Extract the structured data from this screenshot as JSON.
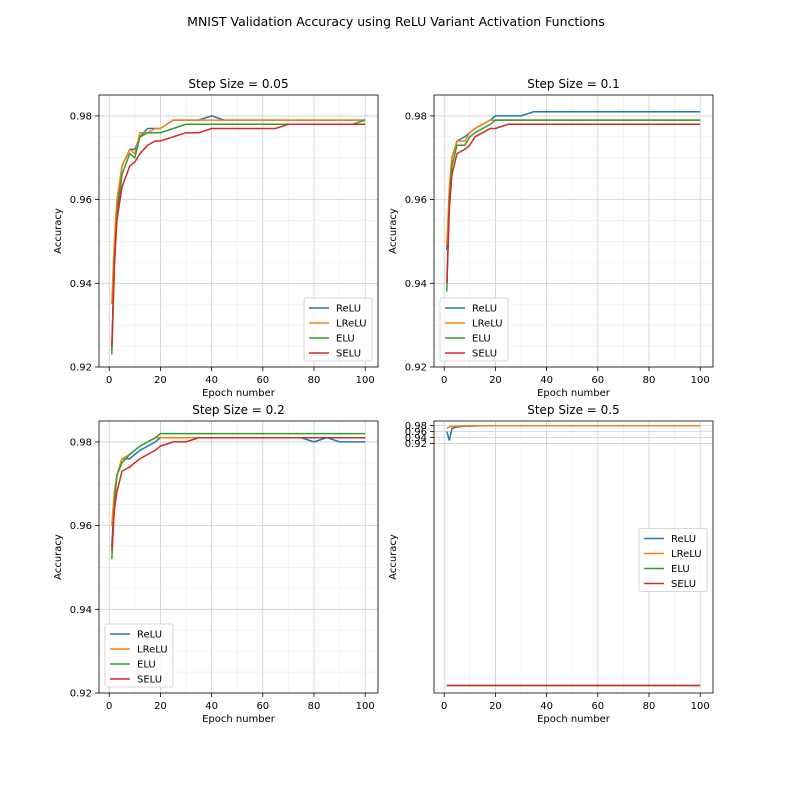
{
  "suptitle": "MNIST Validation Accuracy using ReLU Variant Activation Functions",
  "colors": {
    "ReLU": "#1f77b4",
    "LReLU": "#ff7f0e",
    "ELU": "#2ca02c",
    "SELU": "#d62728"
  },
  "chart_data": [
    {
      "type": "line",
      "title": "Step Size = 0.05",
      "xlabel": "Epoch number",
      "ylabel": "Accuracy",
      "xlim": [
        -4,
        105
      ],
      "ylim": [
        0.92,
        0.985
      ],
      "xticks": [
        0,
        20,
        40,
        60,
        80,
        100
      ],
      "yticks": [
        0.92,
        0.94,
        0.96,
        0.98
      ],
      "ytick_labels": [
        "0.92",
        "0.94",
        "0.96",
        "0.98"
      ],
      "grid": true,
      "legend": "lower-right",
      "x": [
        1,
        2,
        3,
        5,
        8,
        10,
        12,
        15,
        18,
        20,
        25,
        30,
        35,
        40,
        45,
        50,
        55,
        60,
        65,
        70,
        75,
        80,
        85,
        90,
        95,
        100
      ],
      "series": [
        {
          "name": "ReLU",
          "values": [
            0.924,
            0.946,
            0.958,
            0.968,
            0.972,
            0.972,
            0.975,
            0.977,
            0.977,
            0.977,
            0.979,
            0.979,
            0.979,
            0.98,
            0.979,
            0.979,
            0.979,
            0.979,
            0.979,
            0.979,
            0.979,
            0.979,
            0.979,
            0.979,
            0.979,
            0.979
          ]
        },
        {
          "name": "LReLU",
          "values": [
            0.935,
            0.95,
            0.96,
            0.968,
            0.972,
            0.971,
            0.976,
            0.976,
            0.977,
            0.977,
            0.979,
            0.979,
            0.979,
            0.979,
            0.979,
            0.979,
            0.979,
            0.979,
            0.979,
            0.979,
            0.979,
            0.979,
            0.979,
            0.979,
            0.979,
            0.979
          ]
        },
        {
          "name": "ELU",
          "values": [
            0.923,
            0.945,
            0.956,
            0.966,
            0.971,
            0.97,
            0.975,
            0.976,
            0.976,
            0.976,
            0.977,
            0.978,
            0.978,
            0.978,
            0.978,
            0.978,
            0.978,
            0.978,
            0.978,
            0.978,
            0.978,
            0.978,
            0.978,
            0.978,
            0.978,
            0.979
          ]
        },
        {
          "name": "SELU",
          "values": [
            0.925,
            0.944,
            0.955,
            0.963,
            0.968,
            0.969,
            0.971,
            0.973,
            0.974,
            0.974,
            0.975,
            0.976,
            0.976,
            0.977,
            0.977,
            0.977,
            0.977,
            0.977,
            0.977,
            0.978,
            0.978,
            0.978,
            0.978,
            0.978,
            0.978,
            0.978
          ]
        }
      ]
    },
    {
      "type": "line",
      "title": "Step Size = 0.1",
      "xlabel": "Epoch number",
      "ylabel": "Accuracy",
      "xlim": [
        -4,
        105
      ],
      "ylim": [
        0.92,
        0.985
      ],
      "xticks": [
        0,
        20,
        40,
        60,
        80,
        100
      ],
      "yticks": [
        0.92,
        0.94,
        0.96,
        0.98
      ],
      "ytick_labels": [
        "0.92",
        "0.94",
        "0.96",
        "0.98"
      ],
      "grid": true,
      "legend": "lower-left",
      "x": [
        1,
        2,
        3,
        5,
        8,
        10,
        12,
        15,
        18,
        20,
        25,
        30,
        35,
        40,
        45,
        50,
        55,
        60,
        65,
        70,
        75,
        80,
        85,
        90,
        95,
        100
      ],
      "series": [
        {
          "name": "ReLU",
          "values": [
            0.948,
            0.962,
            0.97,
            0.974,
            0.975,
            0.976,
            0.977,
            0.978,
            0.979,
            0.98,
            0.98,
            0.98,
            0.981,
            0.981,
            0.981,
            0.981,
            0.981,
            0.981,
            0.981,
            0.981,
            0.981,
            0.981,
            0.981,
            0.981,
            0.981,
            0.981
          ]
        },
        {
          "name": "LReLU",
          "values": [
            0.949,
            0.963,
            0.97,
            0.974,
            0.974,
            0.976,
            0.977,
            0.978,
            0.979,
            0.979,
            0.979,
            0.979,
            0.979,
            0.979,
            0.979,
            0.979,
            0.979,
            0.979,
            0.979,
            0.979,
            0.979,
            0.979,
            0.979,
            0.979,
            0.979,
            0.979
          ]
        },
        {
          "name": "ELU",
          "values": [
            0.938,
            0.96,
            0.968,
            0.973,
            0.973,
            0.975,
            0.976,
            0.977,
            0.978,
            0.979,
            0.979,
            0.979,
            0.979,
            0.979,
            0.979,
            0.979,
            0.979,
            0.979,
            0.979,
            0.979,
            0.979,
            0.979,
            0.979,
            0.979,
            0.979,
            0.979
          ]
        },
        {
          "name": "SELU",
          "values": [
            0.94,
            0.958,
            0.966,
            0.971,
            0.972,
            0.973,
            0.975,
            0.976,
            0.977,
            0.977,
            0.978,
            0.978,
            0.978,
            0.978,
            0.978,
            0.978,
            0.978,
            0.978,
            0.978,
            0.978,
            0.978,
            0.978,
            0.978,
            0.978,
            0.978,
            0.978
          ]
        }
      ]
    },
    {
      "type": "line",
      "title": "Step Size = 0.2",
      "xlabel": "Epoch number",
      "ylabel": "Accuracy",
      "xlim": [
        -4,
        105
      ],
      "ylim": [
        0.92,
        0.985
      ],
      "xticks": [
        0,
        20,
        40,
        60,
        80,
        100
      ],
      "yticks": [
        0.92,
        0.94,
        0.96,
        0.98
      ],
      "ytick_labels": [
        "0.92",
        "0.94",
        "0.96",
        "0.98"
      ],
      "grid": true,
      "legend": "lower-left",
      "x": [
        1,
        2,
        3,
        5,
        8,
        10,
        12,
        15,
        18,
        20,
        25,
        30,
        35,
        40,
        45,
        50,
        55,
        60,
        65,
        70,
        75,
        80,
        85,
        90,
        95,
        100
      ],
      "series": [
        {
          "name": "ReLU",
          "values": [
            0.955,
            0.967,
            0.972,
            0.976,
            0.976,
            0.977,
            0.978,
            0.979,
            0.98,
            0.981,
            0.981,
            0.981,
            0.981,
            0.981,
            0.981,
            0.981,
            0.981,
            0.981,
            0.981,
            0.981,
            0.981,
            0.98,
            0.981,
            0.98,
            0.98,
            0.98
          ]
        },
        {
          "name": "LReLU",
          "values": [
            0.96,
            0.968,
            0.972,
            0.976,
            0.977,
            0.978,
            0.979,
            0.98,
            0.981,
            0.981,
            0.981,
            0.981,
            0.981,
            0.981,
            0.981,
            0.981,
            0.981,
            0.981,
            0.981,
            0.981,
            0.981,
            0.981,
            0.981,
            0.981,
            0.981,
            0.981
          ]
        },
        {
          "name": "ELU",
          "values": [
            0.952,
            0.965,
            0.972,
            0.975,
            0.977,
            0.978,
            0.979,
            0.98,
            0.981,
            0.982,
            0.982,
            0.982,
            0.982,
            0.982,
            0.982,
            0.982,
            0.982,
            0.982,
            0.982,
            0.982,
            0.982,
            0.982,
            0.982,
            0.982,
            0.982,
            0.982
          ]
        },
        {
          "name": "SELU",
          "values": [
            0.954,
            0.964,
            0.968,
            0.973,
            0.974,
            0.975,
            0.976,
            0.977,
            0.978,
            0.979,
            0.98,
            0.98,
            0.981,
            0.981,
            0.981,
            0.981,
            0.981,
            0.981,
            0.981,
            0.981,
            0.981,
            0.981,
            0.981,
            0.981,
            0.981,
            0.981
          ]
        }
      ]
    },
    {
      "type": "line",
      "title": "Step Size = 0.5",
      "xlabel": "Epoch number",
      "ylabel": "Accuracy",
      "xlim": [
        -4,
        105
      ],
      "ylim": [
        0.09,
        0.995
      ],
      "xticks": [
        0,
        20,
        40,
        60,
        80,
        100
      ],
      "yticks": [
        0.92,
        0.94,
        0.96,
        0.98
      ],
      "ytick_labels": [
        "0.92",
        "0.94",
        "0.96",
        "0.98"
      ],
      "grid": true,
      "legend": "center-right",
      "x": [
        1,
        2,
        3,
        5,
        8,
        10,
        15,
        20,
        30,
        40,
        50,
        60,
        70,
        80,
        90,
        100
      ],
      "series": [
        {
          "name": "ReLU",
          "values": [
            0.96,
            0.93,
            0.97,
            0.975,
            0.978,
            0.978,
            0.979,
            0.979,
            0.979,
            0.979,
            0.979,
            0.979,
            0.979,
            0.979,
            0.979,
            0.979
          ]
        },
        {
          "name": "LReLU",
          "values": [
            0.97,
            0.975,
            0.977,
            0.978,
            0.979,
            0.979,
            0.979,
            0.979,
            0.979,
            0.979,
            0.979,
            0.979,
            0.979,
            0.979,
            0.979,
            0.979
          ]
        },
        {
          "name": "ELU",
          "values": [
            0.115,
            0.115,
            0.115,
            0.115,
            0.115,
            0.115,
            0.115,
            0.115,
            0.115,
            0.115,
            0.115,
            0.115,
            0.115,
            0.115,
            0.115,
            0.115
          ]
        },
        {
          "name": "SELU",
          "values": [
            0.115,
            0.115,
            0.115,
            0.115,
            0.115,
            0.115,
            0.115,
            0.115,
            0.115,
            0.115,
            0.115,
            0.115,
            0.115,
            0.115,
            0.115,
            0.115
          ]
        }
      ]
    }
  ]
}
